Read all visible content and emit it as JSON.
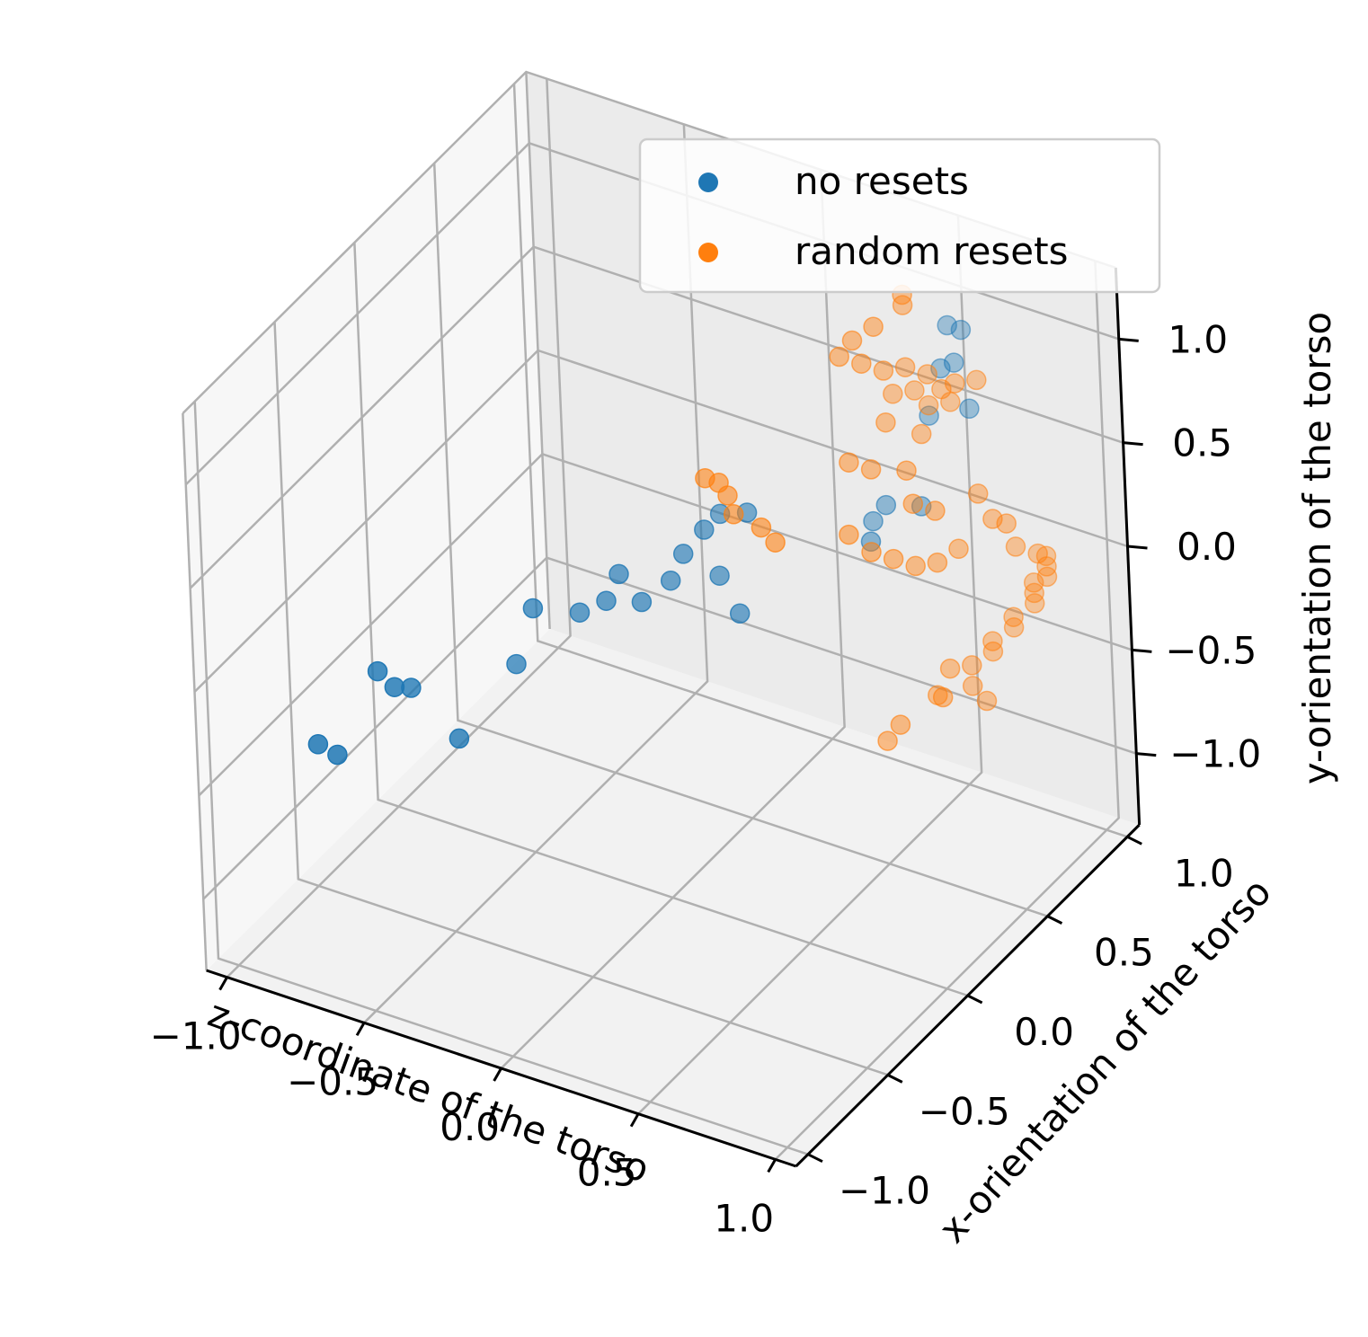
{
  "chart_data": {
    "type": "scatter",
    "projection": "3d",
    "title": "",
    "xlabel": "z-coordinate of the torso",
    "ylabel": "x-orientation of the torso",
    "zlabel": "y-orientation of the torso",
    "xlim": [
      -1.0,
      1.0
    ],
    "ylim": [
      -1.0,
      1.0
    ],
    "zlim": [
      -1.0,
      1.0
    ],
    "x_ticks": [
      "−1.0",
      "−0.5",
      "0.0",
      "0.5",
      "1.0"
    ],
    "y_ticks": [
      "−1.0",
      "−0.5",
      "0.0",
      "0.5",
      "1.0"
    ],
    "z_ticks": [
      "−1.0",
      "−0.5",
      "0.0",
      "0.5",
      "1.0"
    ],
    "grid": true,
    "legend_position": "top-right",
    "series": [
      {
        "name": "no resets",
        "color": "#1f77b4",
        "points": [
          [
            -0.95,
            -0.55,
            -0.6
          ],
          [
            -0.88,
            -0.55,
            -0.62
          ],
          [
            -0.78,
            -0.45,
            -0.25
          ],
          [
            -0.72,
            -0.45,
            -0.3
          ],
          [
            -0.72,
            -0.35,
            -0.38
          ],
          [
            -0.55,
            -0.35,
            -0.55
          ],
          [
            -0.45,
            -0.15,
            -0.3
          ],
          [
            -0.38,
            -0.15,
            0.0
          ],
          [
            -0.3,
            0.0,
            -0.1
          ],
          [
            -0.2,
            0.0,
            0.0
          ],
          [
            -0.18,
            0.05,
            0.1
          ],
          [
            -0.1,
            0.05,
            0.0
          ],
          [
            -0.02,
            0.1,
            0.1
          ],
          [
            0.0,
            0.15,
            0.2
          ],
          [
            0.05,
            0.2,
            0.3
          ],
          [
            0.05,
            0.3,
            0.3
          ],
          [
            0.1,
            0.2,
            0.1
          ],
          [
            0.2,
            0.15,
            0.0
          ],
          [
            0.15,
            0.3,
            0.35
          ],
          [
            0.4,
            0.65,
            0.15
          ],
          [
            0.45,
            0.65,
            0.25
          ],
          [
            0.5,
            0.85,
            0.55
          ],
          [
            0.55,
            0.85,
            0.8
          ],
          [
            0.55,
            0.9,
            0.97
          ],
          [
            0.6,
            0.9,
            0.97
          ],
          [
            0.6,
            0.85,
            0.85
          ],
          [
            0.65,
            0.85,
            0.65
          ],
          [
            0.45,
            0.55,
            0.15
          ],
          [
            0.55,
            0.7,
            0.25
          ]
        ]
      },
      {
        "name": "random resets",
        "color": "#ff7f0e",
        "points": [
          [
            0.0,
            0.3,
            0.45
          ],
          [
            0.05,
            0.3,
            0.45
          ],
          [
            0.05,
            0.35,
            0.35
          ],
          [
            0.1,
            0.3,
            0.32
          ],
          [
            0.2,
            0.3,
            0.3
          ],
          [
            0.25,
            0.3,
            0.25
          ],
          [
            0.35,
            0.65,
            1.0
          ],
          [
            0.4,
            0.7,
            1.05
          ],
          [
            0.45,
            0.8,
            1.1
          ],
          [
            0.45,
            0.8,
            1.15
          ],
          [
            0.3,
            0.65,
            0.9
          ],
          [
            0.35,
            0.7,
            0.85
          ],
          [
            0.4,
            0.75,
            0.8
          ],
          [
            0.45,
            0.8,
            0.8
          ],
          [
            0.5,
            0.85,
            0.75
          ],
          [
            0.55,
            0.85,
            0.7
          ],
          [
            0.6,
            0.85,
            0.75
          ],
          [
            0.65,
            0.9,
            0.75
          ],
          [
            0.4,
            0.8,
            0.65
          ],
          [
            0.45,
            0.85,
            0.65
          ],
          [
            0.5,
            0.85,
            0.6
          ],
          [
            0.55,
            0.9,
            0.6
          ],
          [
            0.4,
            0.75,
            0.55
          ],
          [
            0.5,
            0.8,
            0.5
          ],
          [
            0.35,
            0.6,
            0.45
          ],
          [
            0.4,
            0.65,
            0.4
          ],
          [
            0.5,
            0.7,
            0.4
          ],
          [
            0.55,
            0.65,
            0.3
          ],
          [
            0.6,
            0.7,
            0.25
          ],
          [
            0.4,
            0.5,
            0.2
          ],
          [
            0.45,
            0.55,
            0.1
          ],
          [
            0.5,
            0.6,
            0.05
          ],
          [
            0.55,
            0.65,
            0.0
          ],
          [
            0.6,
            0.7,
            0.0
          ],
          [
            0.65,
            0.75,
            0.05
          ],
          [
            0.7,
            0.8,
            0.3
          ],
          [
            0.75,
            0.8,
            0.2
          ],
          [
            0.8,
            0.8,
            0.2
          ],
          [
            0.8,
            0.85,
            0.05
          ],
          [
            0.85,
            0.9,
            0.0
          ],
          [
            0.85,
            0.95,
            -0.05
          ],
          [
            0.85,
            0.95,
            -0.1
          ],
          [
            0.85,
            0.95,
            -0.15
          ],
          [
            0.8,
            0.95,
            -0.2
          ],
          [
            0.8,
            0.95,
            -0.25
          ],
          [
            0.8,
            0.95,
            -0.3
          ],
          [
            0.75,
            0.9,
            -0.35
          ],
          [
            0.75,
            0.9,
            -0.4
          ],
          [
            0.7,
            0.85,
            -0.45
          ],
          [
            0.7,
            0.85,
            -0.5
          ],
          [
            0.65,
            0.8,
            -0.55
          ],
          [
            0.6,
            0.75,
            -0.55
          ],
          [
            0.6,
            0.7,
            -0.65
          ],
          [
            0.55,
            0.75,
            -0.7
          ],
          [
            0.5,
            0.6,
            -0.75
          ],
          [
            0.45,
            0.6,
            -0.85
          ],
          [
            0.7,
            0.8,
            -0.7
          ],
          [
            0.65,
            0.8,
            -0.65
          ]
        ]
      }
    ]
  },
  "legend": {
    "items": [
      {
        "label": "no resets",
        "color": "#1f77b4"
      },
      {
        "label": "random resets",
        "color": "#ff7f0e"
      }
    ]
  }
}
